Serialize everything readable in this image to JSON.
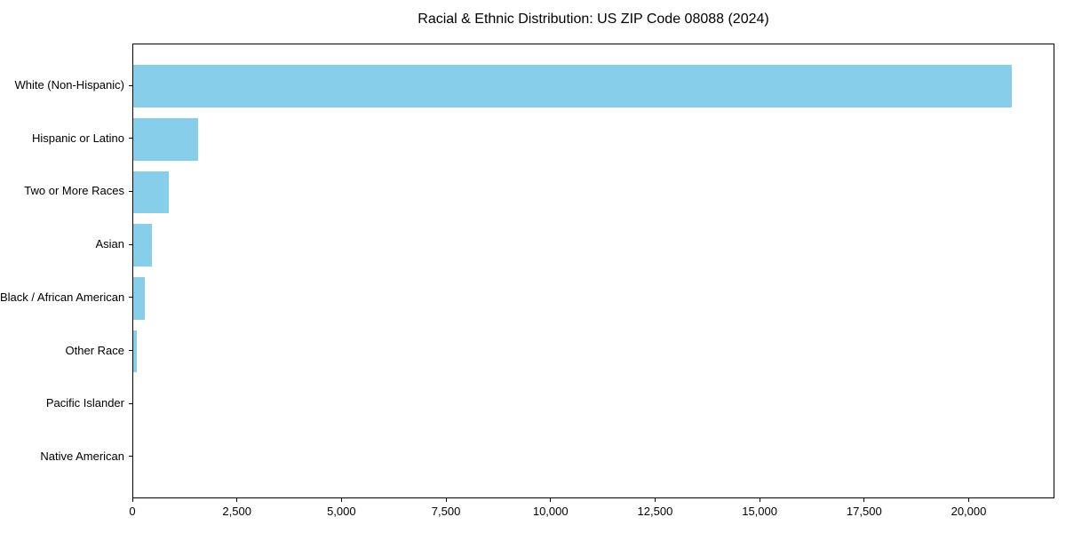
{
  "chart_data": {
    "type": "bar",
    "orientation": "horizontal",
    "title": "Racial & Ethnic Distribution: US ZIP Code 08088 (2024)",
    "categories": [
      "White (Non-Hispanic)",
      "Hispanic or Latino",
      "Two or More Races",
      "Asian",
      "Black / African American",
      "Other Race",
      "Pacific Islander",
      "Native American"
    ],
    "values": [
      21000,
      1550,
      850,
      450,
      285,
      90,
      0,
      0
    ],
    "xlabel": "",
    "ylabel": "",
    "xlim": [
      0,
      22050
    ],
    "xticks": [
      0,
      2500,
      5000,
      7500,
      10000,
      12500,
      15000,
      17500,
      20000
    ],
    "xtick_labels": [
      "0",
      "2,500",
      "5,000",
      "7,500",
      "10,000",
      "12,500",
      "15,000",
      "17,500",
      "20,000"
    ],
    "bar_color": "#87CEEB",
    "spine_color": "#000000",
    "text_color": "#000000",
    "background_color": "#ffffff",
    "grid": false,
    "legend": null
  }
}
